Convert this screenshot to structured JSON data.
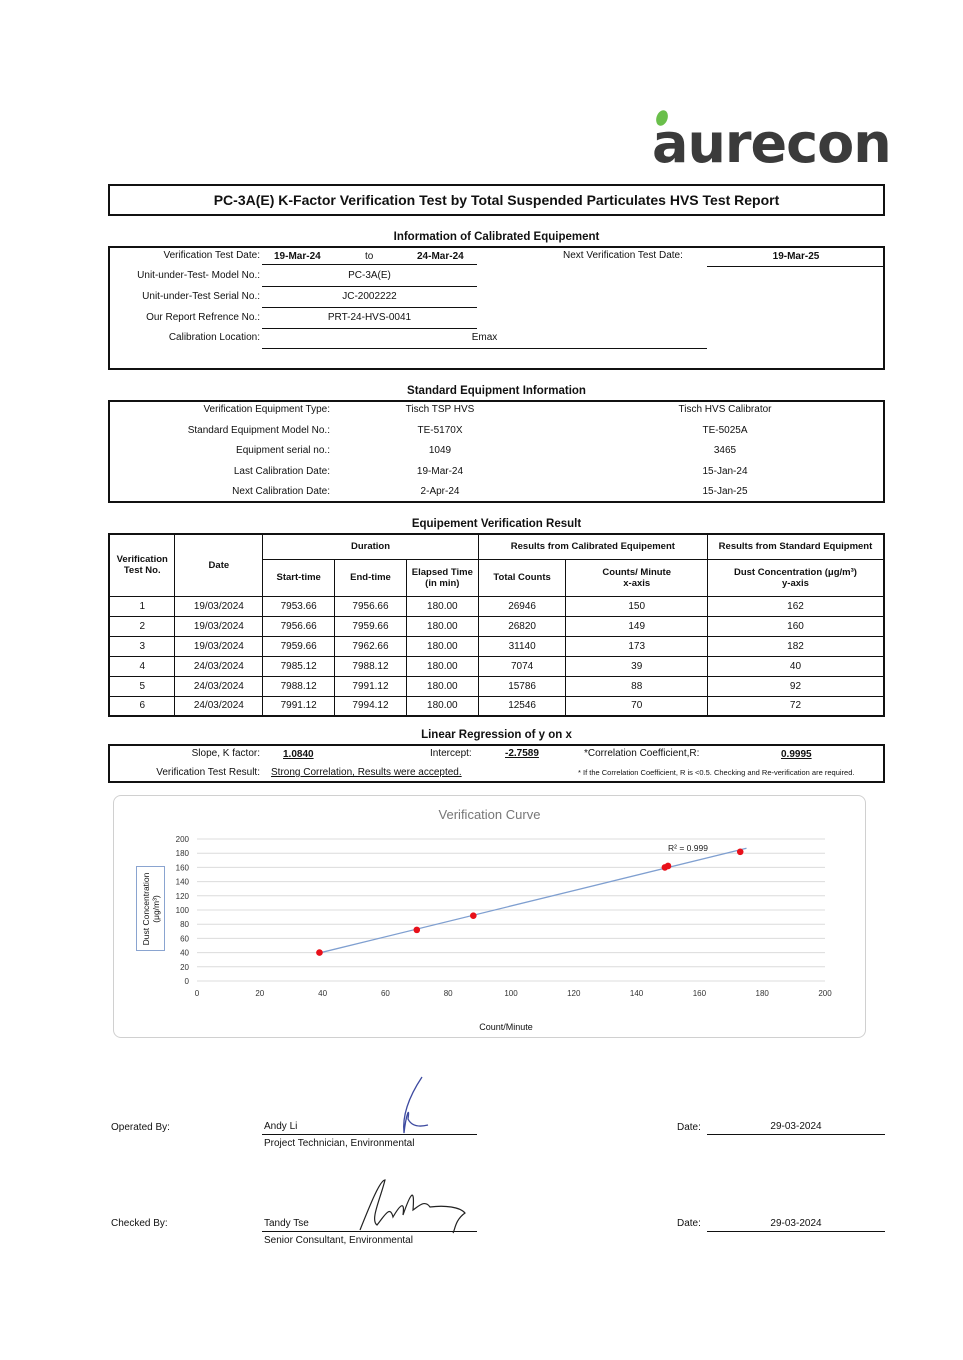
{
  "logo": {
    "text": "aurecon",
    "leaf_color": "#6abf4b"
  },
  "title": "PC-3A(E) K-Factor Verification Test by Total Suspended Particulates HVS Test Report",
  "calibrated": {
    "heading": "Information of Calibrated Equipement",
    "test_date_label": "Verification Test Date:",
    "test_date_from": "19-Mar-24",
    "to": "to",
    "test_date_to": "24-Mar-24",
    "next_label": "Next Verification Test Date:",
    "next_value": "19-Mar-25",
    "model_label": "Unit-under-Test- Model No.:",
    "model_value": "PC-3A(E)",
    "serial_label": "Unit-under-Test Serial No.:",
    "serial_value": "JC-2002222",
    "ref_label": "Our Report Refrence No.:",
    "ref_value": "PRT-24-HVS-0041",
    "location_label": "Calibration Location:",
    "location_value": "Emax"
  },
  "standard": {
    "heading": "Standard Equipment Information",
    "rows": [
      [
        "Verification Equipment Type:",
        "Tisch TSP HVS",
        "Tisch HVS Calibrator"
      ],
      [
        "Standard Equipment Model No.:",
        "TE-5170X",
        "TE-5025A"
      ],
      [
        "Equipment serial no.:",
        "1049",
        "3465"
      ],
      [
        "Last Calibration Date:",
        "19-Mar-24",
        "15-Jan-24"
      ],
      [
        "Next Calibration Date:",
        "2-Apr-24",
        "15-Jan-25"
      ]
    ]
  },
  "verification": {
    "heading": "Equipement Verification Result",
    "headers": {
      "test_no": "Verification Test No.",
      "date": "Date",
      "duration": "Duration",
      "calibrated": "Results from Calibrated Equipement",
      "standard": "Results from Standard Equipment",
      "start": "Start-time",
      "end": "End-time",
      "elapsed": "Elapsed Time (in min)",
      "total": "Total Counts",
      "cpm": "Counts/ Minute",
      "xaxis": "x-axis",
      "dust": "Dust Concentration (μg/m³)",
      "yaxis": "y-axis"
    },
    "rows": [
      [
        "1",
        "19/03/2024",
        "7953.66",
        "7956.66",
        "180.00",
        "26946",
        "150",
        "162"
      ],
      [
        "2",
        "19/03/2024",
        "7956.66",
        "7959.66",
        "180.00",
        "26820",
        "149",
        "160"
      ],
      [
        "3",
        "19/03/2024",
        "7959.66",
        "7962.66",
        "180.00",
        "31140",
        "173",
        "182"
      ],
      [
        "4",
        "24/03/2024",
        "7985.12",
        "7988.12",
        "180.00",
        "7074",
        "39",
        "40"
      ],
      [
        "5",
        "24/03/2024",
        "7988.12",
        "7991.12",
        "180.00",
        "15786",
        "88",
        "92"
      ],
      [
        "6",
        "24/03/2024",
        "7991.12",
        "7994.12",
        "180.00",
        "12546",
        "70",
        "72"
      ]
    ]
  },
  "regression": {
    "heading": "Linear Regression of y on x",
    "slope_label": "Slope, K factor:",
    "slope": "1.0840",
    "intercept_label": "Intercept:",
    "intercept": "-2.7589",
    "r_label": "*Correlation Coefficient,R:",
    "r": "0.9995",
    "result_label": "Verification Test Result:",
    "result": "Strong Correlation, Results were accepted.",
    "note": "* If the Correlation Coefficient, R is <0.5. Checking and Re-verification are required."
  },
  "chart_data": {
    "type": "scatter",
    "title": "Verification Curve",
    "xlabel": "Count/Minute",
    "ylabel": "Dust Concentration (μg/m³)",
    "xlim": [
      0,
      200
    ],
    "ylim": [
      0,
      200
    ],
    "xticks": [
      0,
      20,
      40,
      60,
      80,
      100,
      120,
      140,
      160,
      180,
      200
    ],
    "yticks": [
      0,
      20,
      40,
      60,
      80,
      100,
      120,
      140,
      160,
      180,
      200
    ],
    "x": [
      150,
      149,
      173,
      39,
      88,
      70
    ],
    "y": [
      162,
      160,
      182,
      40,
      92,
      72
    ],
    "trendline": {
      "slope": 1.084,
      "intercept": -2.7589,
      "label": "R² = 0.999",
      "color": "#7f9fd0"
    },
    "marker_color": "#e8101a",
    "grid": true,
    "legend": "none"
  },
  "signatures": {
    "operated_label": "Operated By:",
    "operated_name": "Andy Li",
    "operated_title": "Project Technician, Environmental",
    "checked_label": "Checked By:",
    "checked_name": "Tandy Tse",
    "checked_title": "Senior Consultant, Environmental",
    "date_label": "Date:",
    "operated_date": "29-03-2024",
    "checked_date": "29-03-2024"
  }
}
